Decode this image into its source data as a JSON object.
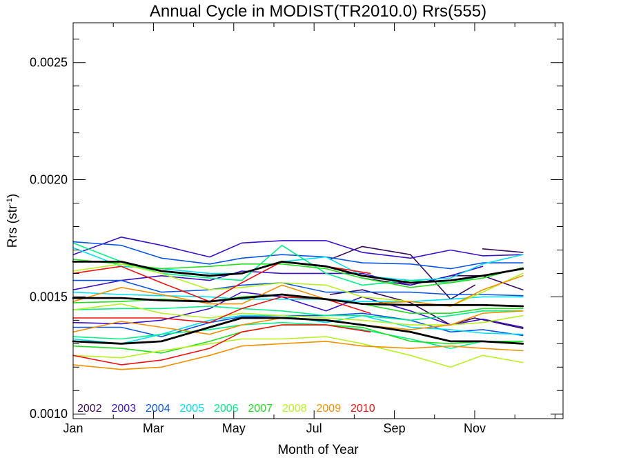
{
  "chart_data": {
    "type": "line",
    "title": "Annual Cycle in MODIST(TR2010.0) Rrs(555)",
    "xlabel": "Month of Year",
    "ylabel": {
      "base": "Rrs (str",
      "sup": "-1",
      "tail": ")"
    },
    "xlim": [
      1,
      13.2
    ],
    "ylim": [
      0.00098,
      0.00267
    ],
    "x_ticks": [
      {
        "value": 1,
        "label": "Jan"
      },
      {
        "value": 3,
        "label": "Mar"
      },
      {
        "value": 5,
        "label": "May"
      },
      {
        "value": 7,
        "label": "Jul"
      },
      {
        "value": 9,
        "label": "Sep"
      },
      {
        "value": 11,
        "label": "Nov"
      }
    ],
    "y_ticks": [
      {
        "value": 0.001,
        "label": "0.0010"
      },
      {
        "value": 0.0015,
        "label": "0.0015"
      },
      {
        "value": 0.002,
        "label": "0.0020"
      },
      {
        "value": 0.0025,
        "label": "0.0025"
      }
    ],
    "legend": {
      "placement": "bottom-left",
      "entries": [
        {
          "label": "2002",
          "color": "#3b0a5c"
        },
        {
          "label": "2003",
          "color": "#3a10c8"
        },
        {
          "label": "2004",
          "color": "#0a55e0"
        },
        {
          "label": "2005",
          "color": "#00e0f0"
        },
        {
          "label": "2006",
          "color": "#00f088"
        },
        {
          "label": "2007",
          "color": "#20e020"
        },
        {
          "label": "2008",
          "color": "#b8f020"
        },
        {
          "label": "2009",
          "color": "#f09000"
        },
        {
          "label": "2010",
          "color": "#f01010"
        }
      ]
    },
    "series": [
      {
        "color": "#3b0a5c",
        "width": 1.6,
        "x": [
          7.4,
          8.2,
          9.4,
          10.4,
          11.0
        ],
        "y": [
          0.00166,
          0.001715,
          0.00168,
          0.00149,
          0.00155
        ]
      },
      {
        "color": "#3b0a5c",
        "width": 1.6,
        "x": [
          11.2,
          12.2
        ],
        "y": [
          0.001705,
          0.00169
        ]
      },
      {
        "color": "#3b0a5c",
        "width": 1.6,
        "x": [
          7.4,
          8.2,
          9.4,
          10.4,
          11.0,
          12.2
        ],
        "y": [
          0.00151,
          0.00153,
          0.001475,
          0.00138,
          0.00141,
          0.001365
        ]
      },
      {
        "color": "#3b0a5c",
        "width": 1.6,
        "x": [
          8.2,
          9.4,
          10.4,
          11.2,
          12.2
        ],
        "y": [
          0.00158,
          0.00155,
          0.00159,
          0.00159,
          0.00153
        ]
      },
      {
        "color": "#3a10c8",
        "width": 1.6,
        "x": [
          1,
          2.2,
          3.2,
          4.4,
          5.2,
          6.2,
          7.3,
          8.2,
          9.4,
          10.4,
          11.2,
          12.2
        ],
        "y": [
          0.00168,
          0.001755,
          0.00172,
          0.00167,
          0.00173,
          0.00174,
          0.00174,
          0.00169,
          0.001665,
          0.0017,
          0.001675,
          0.00168
        ]
      },
      {
        "color": "#3a10c8",
        "width": 1.6,
        "x": [
          1,
          2.2,
          3.2,
          4.4,
          5.2,
          6.2,
          7.3,
          8.2,
          9.4,
          10.4,
          11.2
        ],
        "y": [
          0.00153,
          0.00157,
          0.00159,
          0.00157,
          0.00161,
          0.0016,
          0.0016,
          0.0016,
          0.00155,
          0.00159,
          0.00163
        ]
      },
      {
        "color": "#3a10c8",
        "width": 1.6,
        "x": [
          1,
          2.2,
          3.2,
          4.4,
          5.2,
          6.2,
          7.3,
          8.2,
          9.4,
          10.4,
          11.2,
          12.2
        ],
        "y": [
          0.00139,
          0.001385,
          0.0014,
          0.00145,
          0.00152,
          0.0015,
          0.00144,
          0.0015,
          0.00144,
          0.00138,
          0.001405,
          0.00137
        ]
      },
      {
        "color": "#0a55e0",
        "width": 1.6,
        "x": [
          1,
          2.2,
          3.2,
          4.4,
          5.2,
          6.2,
          7.3,
          8.2,
          9.4,
          10.4,
          11.2,
          12.2
        ],
        "y": [
          0.001735,
          0.00172,
          0.001665,
          0.00164,
          0.001665,
          0.00168,
          0.00167,
          0.001645,
          0.00164,
          0.00162,
          0.001645,
          0.001645
        ]
      },
      {
        "color": "#0a55e0",
        "width": 1.6,
        "x": [
          1,
          2.2,
          3.2,
          4.4,
          5.2,
          6.2,
          7.3,
          8.2,
          9.4,
          10.4,
          11.2,
          12.2
        ],
        "y": [
          0.00157,
          0.00157,
          0.00152,
          0.00153,
          0.00155,
          0.00156,
          0.00152,
          0.00152,
          0.00152,
          0.00151,
          0.00151,
          0.001505
        ]
      },
      {
        "color": "#0a55e0",
        "width": 1.6,
        "x": [
          1,
          2.2,
          3.2,
          4.4,
          5.2,
          6.2,
          7.3,
          8.2,
          9.4,
          10.4,
          11.2,
          12.2
        ],
        "y": [
          0.00137,
          0.00137,
          0.00133,
          0.00139,
          0.001415,
          0.00142,
          0.00142,
          0.00143,
          0.0014,
          0.00135,
          0.00136,
          0.001335
        ]
      },
      {
        "color": "#00e0f0",
        "width": 1.6,
        "x": [
          1,
          2.2,
          3.2,
          4.4,
          5.2,
          6.2,
          7.3,
          8.2,
          9.4,
          10.4,
          11.2,
          12.2
        ],
        "y": [
          0.00171,
          0.00163,
          0.00162,
          0.0016,
          0.0016,
          0.00165,
          0.00167,
          0.00159,
          0.00157,
          0.00158,
          0.00164,
          0.00168
        ]
      },
      {
        "color": "#00e0f0",
        "width": 1.6,
        "x": [
          1,
          2.2,
          3.2,
          4.4,
          5.2,
          6.2,
          7.3,
          8.2,
          9.4,
          10.4,
          11.2,
          12.2
        ],
        "y": [
          0.00152,
          0.00151,
          0.001505,
          0.0015,
          0.00149,
          0.00149,
          0.00149,
          0.00148,
          0.00148,
          0.00149,
          0.0015,
          0.0015
        ]
      },
      {
        "color": "#00e0f0",
        "width": 1.6,
        "x": [
          1,
          2.2,
          3.2,
          4.4,
          5.2,
          6.2,
          7.3,
          8.2,
          9.4,
          10.4,
          11.2,
          12.2
        ],
        "y": [
          0.00132,
          0.0013,
          0.00134,
          0.0014,
          0.00142,
          0.00142,
          0.00139,
          0.00142,
          0.00137,
          0.00136,
          0.001345,
          0.00134
        ]
      },
      {
        "color": "#00f088",
        "width": 1.6,
        "x": [
          1,
          2.2,
          3.2,
          4.4,
          5.2,
          6.2,
          7.3,
          8.2,
          9.4,
          10.4,
          11.2,
          12.2
        ],
        "y": [
          0.00173,
          0.00165,
          0.0016,
          0.00158,
          0.00157,
          0.00172,
          0.0016,
          0.00155,
          0.00157,
          0.00156,
          0.00159,
          0.00162
        ]
      },
      {
        "color": "#00f088",
        "width": 1.6,
        "x": [
          1,
          2.2,
          3.2,
          4.4,
          5.2,
          6.2,
          7.3,
          8.2,
          9.4,
          10.4,
          11.2,
          12.2
        ],
        "y": [
          0.001445,
          0.00145,
          0.00145,
          0.00146,
          0.00145,
          0.00144,
          0.00142,
          0.00142,
          0.0014,
          0.00142,
          0.00144,
          0.00144
        ]
      },
      {
        "color": "#00f088",
        "width": 1.6,
        "x": [
          1,
          2.2,
          3.2,
          4.4,
          5.2,
          6.2,
          7.3,
          8.2,
          9.4,
          10.4,
          11.2,
          12.2
        ],
        "y": [
          0.00133,
          0.00132,
          0.00134,
          0.00136,
          0.00138,
          0.00139,
          0.00138,
          0.00136,
          0.00132,
          0.00128,
          0.00131,
          0.00131
        ]
      },
      {
        "color": "#20e020",
        "width": 1.6,
        "x": [
          1,
          2.2,
          3.2,
          4.4,
          5.2,
          6.2,
          7.3,
          8.2,
          9.4,
          10.4,
          11.2,
          12.2
        ],
        "y": [
          0.00166,
          0.00164,
          0.00162,
          0.00163,
          0.00164,
          0.00164,
          0.00162,
          0.00158,
          0.00154,
          0.00156,
          0.00158,
          0.001625
        ]
      },
      {
        "color": "#20e020",
        "width": 1.6,
        "x": [
          1,
          2.2,
          3.2,
          4.4,
          5.2,
          6.2,
          7.3,
          8.2,
          9.4,
          10.4,
          11.2,
          12.2
        ],
        "y": [
          0.001475,
          0.00148,
          0.00149,
          0.00148,
          0.0015,
          0.00151,
          0.00149,
          0.00147,
          0.00143,
          0.00143,
          0.00145,
          0.00145
        ]
      },
      {
        "color": "#20e020",
        "width": 1.6,
        "x": [
          1,
          2.2,
          3.2,
          4.4,
          5.2,
          6.2,
          7.3,
          8.2,
          9.4,
          10.4,
          11.2,
          12.2
        ],
        "y": [
          0.00129,
          0.00128,
          0.00126,
          0.00131,
          0.00135,
          0.00138,
          0.00138,
          0.00137,
          0.00131,
          0.0013,
          0.00131,
          0.00131
        ]
      },
      {
        "color": "#b8f020",
        "width": 1.6,
        "x": [
          1,
          2.2,
          3.2,
          4.4,
          5.2,
          6.2,
          7.3,
          8.2,
          9.4,
          10.4,
          11.2,
          12.2
        ],
        "y": [
          0.00161,
          0.00164,
          0.0016,
          0.00153,
          0.00154,
          0.00156,
          0.00155,
          0.0015,
          0.00148,
          0.00146,
          0.00152,
          0.0016
        ]
      },
      {
        "color": "#b8f020",
        "width": 1.6,
        "x": [
          1,
          2.2,
          3.2,
          4.4,
          5.2,
          6.2,
          7.3,
          8.2,
          9.4,
          10.4,
          11.2,
          12.2
        ],
        "y": [
          0.001445,
          0.00147,
          0.00143,
          0.00141,
          0.00143,
          0.00142,
          0.00141,
          0.0014,
          0.00138,
          0.00138,
          0.00139,
          0.00142
        ]
      },
      {
        "color": "#b8f020",
        "width": 1.6,
        "x": [
          1,
          2.2,
          3.2,
          4.4,
          5.2,
          6.2,
          7.3,
          8.2,
          9.4,
          10.4,
          11.2,
          12.2
        ],
        "y": [
          0.00125,
          0.00124,
          0.00127,
          0.0013,
          0.00132,
          0.00132,
          0.00133,
          0.0013,
          0.00125,
          0.0012,
          0.00125,
          0.00122
        ]
      },
      {
        "color": "#f09000",
        "width": 1.6,
        "x": [
          1,
          2.2,
          3.2,
          4.4,
          5.2,
          6.2,
          7.3,
          8.2,
          9.4,
          10.4,
          11.2,
          12.2
        ],
        "y": [
          0.00148,
          0.00154,
          0.00151,
          0.00147,
          0.00147,
          0.00155,
          0.00149,
          0.00147,
          0.00148,
          0.00146,
          0.00153,
          0.00159
        ]
      },
      {
        "color": "#f09000",
        "width": 1.6,
        "x": [
          1,
          2.2,
          3.2,
          4.4,
          5.2,
          6.2,
          7.3,
          8.2,
          9.4,
          10.4,
          11.2,
          12.2
        ],
        "y": [
          0.00135,
          0.001395,
          0.00137,
          0.00134,
          0.00138,
          0.00141,
          0.0014,
          0.00138,
          0.00136,
          0.00138,
          0.00143,
          0.00144
        ]
      },
      {
        "color": "#f09000",
        "width": 1.6,
        "x": [
          1,
          2.2,
          3.2,
          4.4,
          5.2,
          6.2,
          7.3,
          8.2,
          9.4,
          10.4,
          11.2,
          12.2
        ],
        "y": [
          0.00121,
          0.00119,
          0.0012,
          0.00125,
          0.00129,
          0.0013,
          0.00131,
          0.00129,
          0.00128,
          0.00129,
          0.00128,
          0.00127
        ]
      },
      {
        "color": "#f01010",
        "width": 1.6,
        "x": [
          1,
          2.2,
          3.2,
          4.4,
          5.2,
          6.2,
          7.3,
          8.4
        ],
        "y": [
          0.0016,
          0.00163,
          0.00156,
          0.00148,
          0.00156,
          0.00165,
          0.00163,
          0.0016
        ]
      },
      {
        "color": "#f01010",
        "width": 1.6,
        "x": [
          1,
          2.2,
          3.2,
          4.4,
          5.2,
          6.2,
          7.3,
          8.4
        ],
        "y": [
          0.00141,
          0.00141,
          0.00141,
          0.00139,
          0.00145,
          0.0015,
          0.00149,
          0.00143
        ]
      },
      {
        "color": "#f01010",
        "width": 1.6,
        "x": [
          1,
          2.2,
          3.2,
          4.4,
          5.2,
          6.2,
          7.3,
          8.4
        ],
        "y": [
          0.00125,
          0.00121,
          0.00123,
          0.00128,
          0.00135,
          0.00138,
          0.00138,
          0.00135
        ]
      },
      {
        "color": "#000000",
        "width": 2.8,
        "x": [
          1,
          2.2,
          3.2,
          4.4,
          5.2,
          6.2,
          7.3,
          8.2,
          9.4,
          10.4,
          11.2,
          12.2
        ],
        "y": [
          0.00165,
          0.00165,
          0.00161,
          0.00159,
          0.0016,
          0.00165,
          0.00163,
          0.00159,
          0.00156,
          0.00157,
          0.00159,
          0.00162
        ]
      },
      {
        "color": "#000000",
        "width": 2.8,
        "x": [
          1,
          2.2,
          3.2,
          4.4,
          5.2,
          6.2,
          7.3,
          8.2,
          9.4,
          10.4,
          11.2,
          12.2
        ],
        "y": [
          0.001495,
          0.001495,
          0.001485,
          0.00148,
          0.001495,
          0.00151,
          0.00149,
          0.00147,
          0.001465,
          0.001465,
          0.001465,
          0.00146
        ]
      },
      {
        "color": "#000000",
        "width": 2.8,
        "x": [
          1,
          2.2,
          3.2,
          4.4,
          5.2,
          6.2,
          7.3,
          8.2,
          9.4,
          10.4,
          11.2,
          12.2
        ],
        "y": [
          0.00131,
          0.0013,
          0.00131,
          0.00137,
          0.00141,
          0.00141,
          0.0014,
          0.00138,
          0.00135,
          0.00131,
          0.00131,
          0.0013
        ]
      }
    ]
  }
}
